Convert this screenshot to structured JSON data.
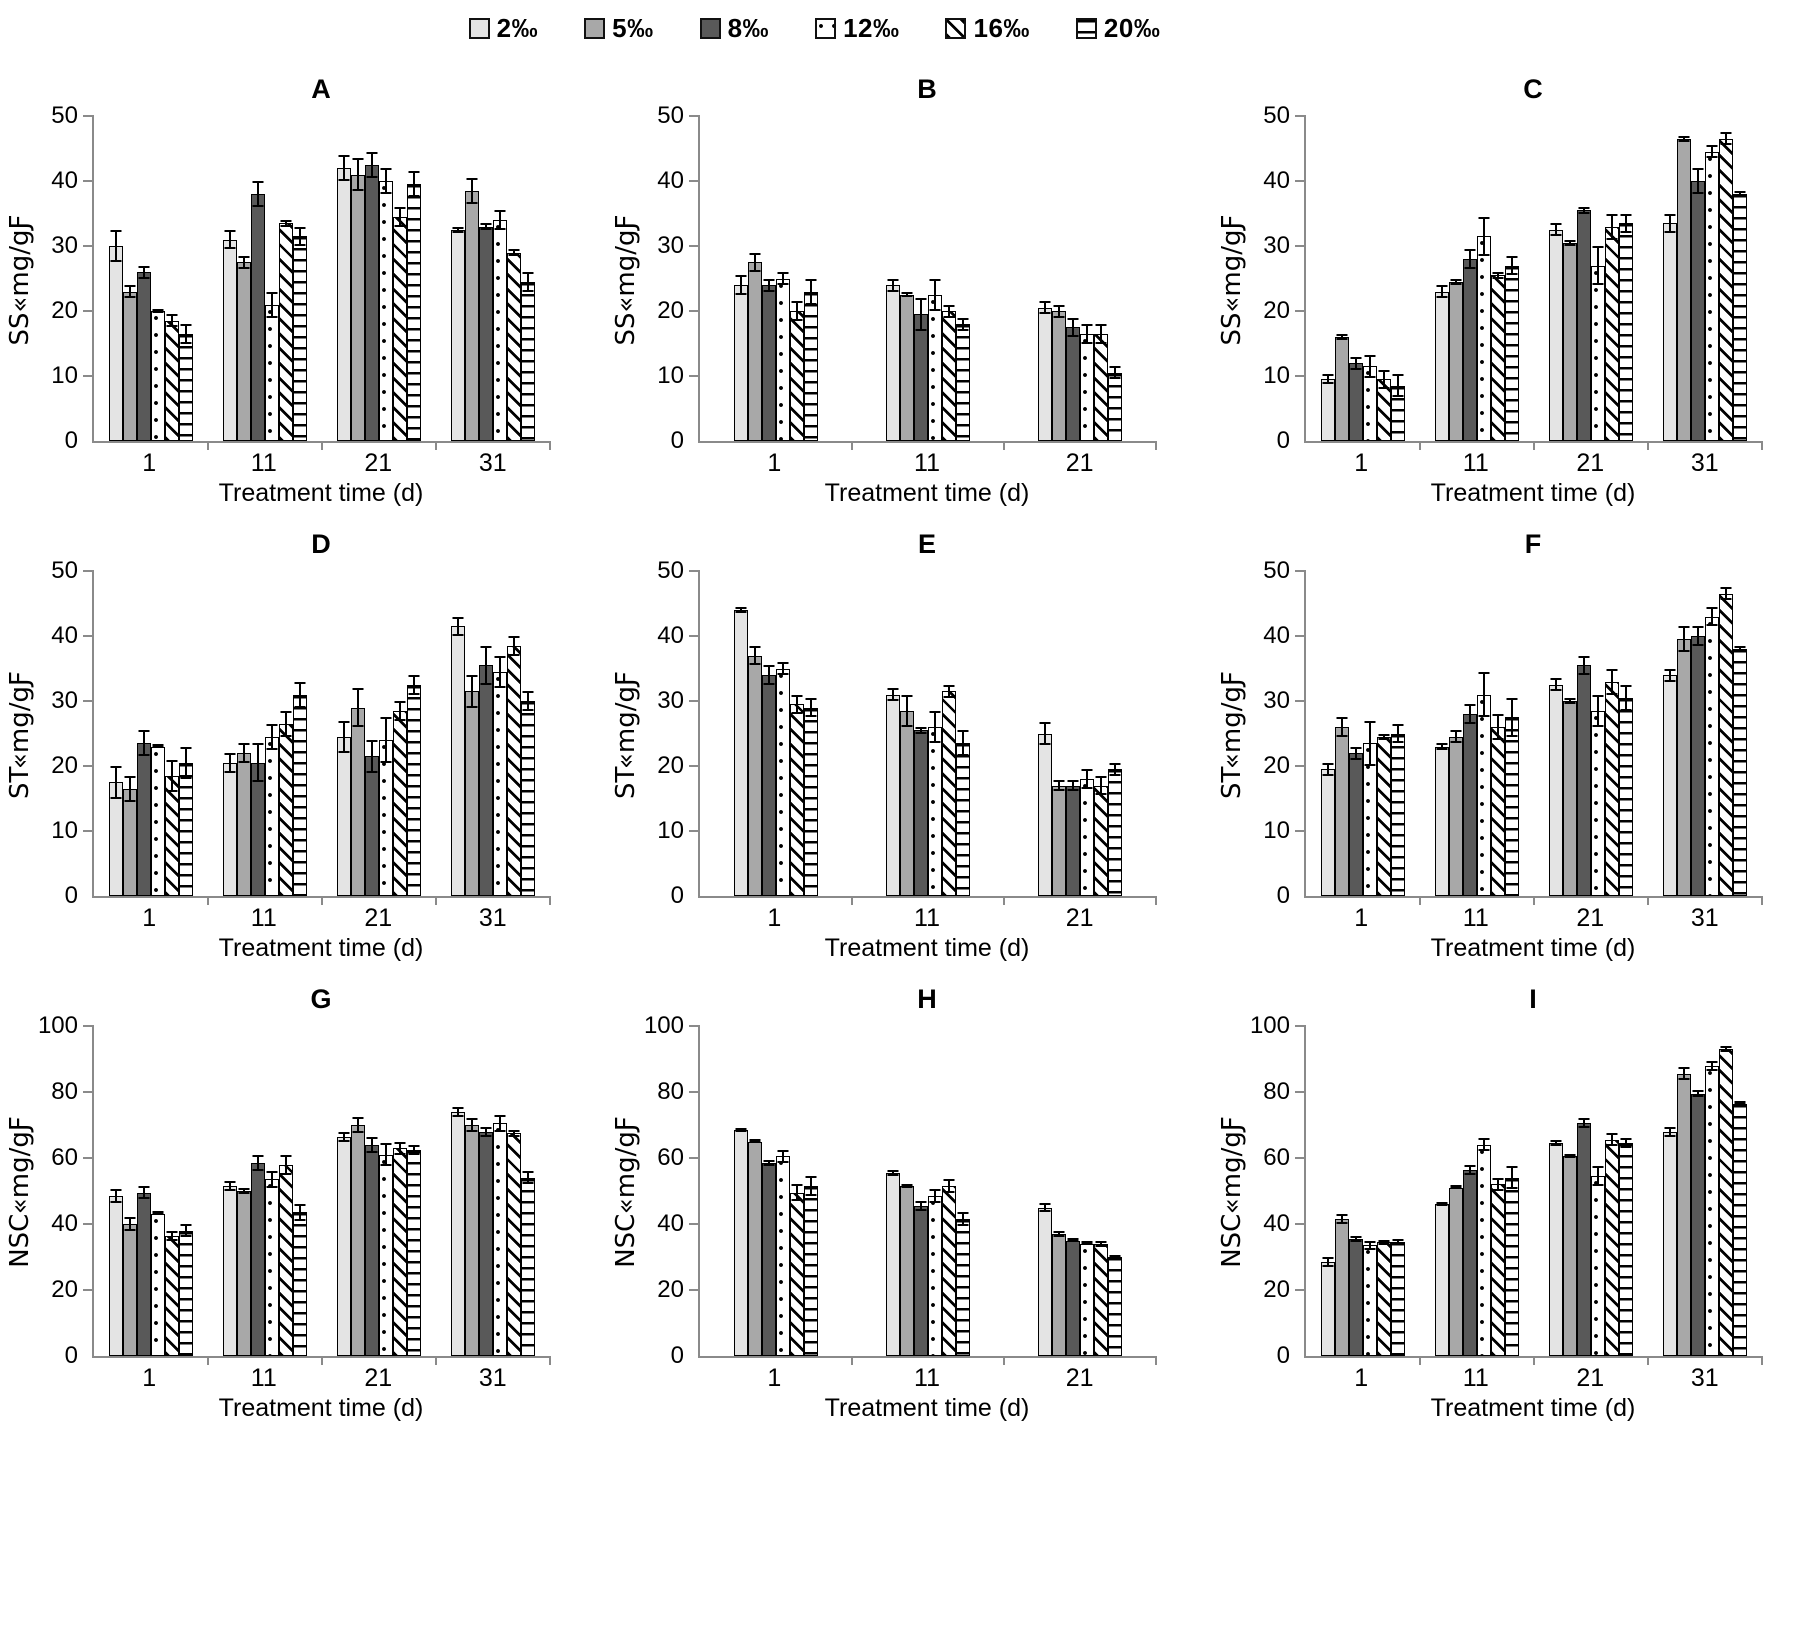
{
  "legend": {
    "items": [
      {
        "label": "2‰",
        "pattern": "p0"
      },
      {
        "label": "5‰",
        "pattern": "p1"
      },
      {
        "label": "8‰",
        "pattern": "p2"
      },
      {
        "label": "12‰",
        "pattern": "p3"
      },
      {
        "label": "16‰",
        "pattern": "p4"
      },
      {
        "label": "20‰",
        "pattern": "p5"
      }
    ]
  },
  "xlabel": "Treatment time (d)",
  "chart_data": [
    {
      "type": "bar",
      "id": "A",
      "title": "A",
      "ylabel": "SS«mg/gƑ",
      "ymax": 50,
      "ystep": 10,
      "legend_position": "top",
      "grid": false,
      "series_names": [
        "2‰",
        "5‰",
        "8‰",
        "12‰",
        "16‰",
        "20‰"
      ],
      "groups": [
        {
          "label": "1",
          "values": [
            30,
            23,
            26,
            20,
            18.5,
            16.5
          ],
          "errors": [
            2.5,
            1,
            1,
            0.3,
            1,
            1.5
          ]
        },
        {
          "label": "11",
          "values": [
            31,
            27.5,
            38,
            21,
            33.5,
            31.5
          ],
          "errors": [
            1.5,
            1,
            2,
            2,
            0.5,
            1.5
          ]
        },
        {
          "label": "21",
          "values": [
            42,
            41,
            42.5,
            40,
            34.5,
            39.5
          ],
          "errors": [
            2,
            2.5,
            2,
            2,
            1.5,
            2
          ]
        },
        {
          "label": "31",
          "values": [
            32.5,
            38.5,
            33,
            34,
            29,
            24.5
          ],
          "errors": [
            0.5,
            2,
            0.5,
            1.5,
            0.5,
            1.5
          ]
        }
      ]
    },
    {
      "type": "bar",
      "id": "B",
      "title": "B",
      "ylabel": "SS«mg/gƑ",
      "ymax": 50,
      "ystep": 10,
      "legend_position": "top",
      "grid": false,
      "series_names": [
        "2‰",
        "5‰",
        "8‰",
        "12‰",
        "16‰",
        "20‰"
      ],
      "groups": [
        {
          "label": "1",
          "values": [
            24,
            27.5,
            24,
            25,
            20,
            23
          ],
          "errors": [
            1.5,
            1.5,
            1,
            1,
            1.5,
            2
          ]
        },
        {
          "label": "11",
          "values": [
            24,
            22.5,
            19.5,
            22.5,
            20,
            18
          ],
          "errors": [
            1,
            0.4,
            2.5,
            2.5,
            1,
            1
          ]
        },
        {
          "label": "21",
          "values": [
            20.5,
            20,
            17.5,
            16.5,
            16.5,
            10.5
          ],
          "errors": [
            1,
            1,
            1.5,
            1.5,
            1.5,
            1
          ]
        }
      ]
    },
    {
      "type": "bar",
      "id": "C",
      "title": "C",
      "ylabel": "SS«mg/gƑ",
      "ymax": 50,
      "ystep": 10,
      "legend_position": "top",
      "grid": false,
      "series_names": [
        "2‰",
        "5‰",
        "8‰",
        "12‰",
        "16‰",
        "20‰"
      ],
      "groups": [
        {
          "label": "1",
          "values": [
            9.5,
            16,
            12,
            11.5,
            9.5,
            8.5
          ],
          "errors": [
            0.8,
            0.5,
            1,
            1.8,
            1.5,
            1.8
          ]
        },
        {
          "label": "11",
          "values": [
            23,
            24.5,
            28,
            31.5,
            25.5,
            27
          ],
          "errors": [
            1,
            0.5,
            1.5,
            3,
            0.5,
            1.5
          ]
        },
        {
          "label": "21",
          "values": [
            32.5,
            30.5,
            35.5,
            27,
            33,
            33.5
          ],
          "errors": [
            1,
            0.5,
            0.5,
            3,
            2,
            1.5
          ]
        },
        {
          "label": "31",
          "values": [
            33.5,
            46.5,
            40,
            44.5,
            46.5,
            38
          ],
          "errors": [
            1.5,
            0.5,
            2,
            1,
            1,
            0.5
          ]
        }
      ]
    },
    {
      "type": "bar",
      "id": "D",
      "title": "D",
      "ylabel": "ST«mg/gƑ",
      "ymax": 50,
      "ystep": 10,
      "legend_position": "top",
      "grid": false,
      "series_names": [
        "2‰",
        "5‰",
        "8‰",
        "12‰",
        "16‰",
        "20‰"
      ],
      "groups": [
        {
          "label": "1",
          "values": [
            17.5,
            16.5,
            23.5,
            23,
            18.5,
            20.5
          ],
          "errors": [
            2.5,
            2,
            2,
            0.3,
            2.5,
            2.5
          ]
        },
        {
          "label": "11",
          "values": [
            20.5,
            22,
            20.5,
            24.5,
            26.5,
            31
          ],
          "errors": [
            1.5,
            1.5,
            3,
            2,
            2,
            2
          ]
        },
        {
          "label": "21",
          "values": [
            24.5,
            29,
            21.5,
            24,
            28.5,
            32.5
          ],
          "errors": [
            2.5,
            3,
            2.5,
            3.5,
            1.5,
            1.5
          ]
        },
        {
          "label": "31",
          "values": [
            41.5,
            31.5,
            35.5,
            34.5,
            38.5,
            30
          ],
          "errors": [
            1.5,
            2.5,
            3,
            2.5,
            1.5,
            1.5
          ]
        }
      ]
    },
    {
      "type": "bar",
      "id": "E",
      "title": "E",
      "ylabel": "ST«mg/gƑ",
      "ymax": 50,
      "ystep": 10,
      "legend_position": "top",
      "grid": false,
      "series_names": [
        "2‰",
        "5‰",
        "8‰",
        "12‰",
        "16‰",
        "20‰"
      ],
      "groups": [
        {
          "label": "1",
          "values": [
            44,
            37,
            34,
            35,
            29.5,
            29
          ],
          "errors": [
            0.5,
            1.5,
            1.5,
            1,
            1.5,
            1.5
          ]
        },
        {
          "label": "11",
          "values": [
            31,
            28.5,
            25.5,
            26,
            31.5,
            23.5
          ],
          "errors": [
            1,
            2.5,
            0.5,
            2.5,
            1,
            2
          ]
        },
        {
          "label": "21",
          "values": [
            25,
            17,
            17,
            18,
            17,
            19.5
          ],
          "errors": [
            1.8,
            0.8,
            0.8,
            1.5,
            1.5,
            1
          ]
        }
      ]
    },
    {
      "type": "bar",
      "id": "F",
      "title": "F",
      "ylabel": "ST«mg/gƑ",
      "ymax": 50,
      "ystep": 10,
      "legend_position": "top",
      "grid": false,
      "series_names": [
        "2‰",
        "5‰",
        "8‰",
        "12‰",
        "16‰",
        "20‰"
      ],
      "groups": [
        {
          "label": "1",
          "values": [
            19.5,
            26,
            22,
            23.5,
            24.5,
            25
          ],
          "errors": [
            1,
            1.5,
            1,
            3.5,
            0.5,
            1.5
          ]
        },
        {
          "label": "11",
          "values": [
            23,
            24.5,
            28,
            31,
            26,
            27.5
          ],
          "errors": [
            0.5,
            1,
            1.5,
            3.5,
            2,
            3
          ]
        },
        {
          "label": "21",
          "values": [
            32.5,
            30,
            35.5,
            28.5,
            33,
            30.5
          ],
          "errors": [
            1,
            0.5,
            1.5,
            2.5,
            2,
            2
          ]
        },
        {
          "label": "31",
          "values": [
            34,
            39.5,
            40,
            43,
            46.5,
            38
          ],
          "errors": [
            1,
            2,
            1.5,
            1.5,
            1,
            0.5
          ]
        }
      ]
    },
    {
      "type": "bar",
      "id": "G",
      "title": "G",
      "ylabel": "NSC«mg/gƑ",
      "ymax": 100,
      "ystep": 20,
      "legend_position": "top",
      "grid": false,
      "series_names": [
        "2‰",
        "5‰",
        "8‰",
        "12‰",
        "16‰",
        "20‰"
      ],
      "groups": [
        {
          "label": "1",
          "values": [
            48.5,
            40,
            49.5,
            43,
            36.5,
            38
          ],
          "errors": [
            2,
            2,
            2,
            0.4,
            1.5,
            2
          ]
        },
        {
          "label": "11",
          "values": [
            51.5,
            50,
            58.5,
            53.5,
            58,
            43.5
          ],
          "errors": [
            1.5,
            1,
            2.5,
            2.5,
            3,
            2.5
          ]
        },
        {
          "label": "21",
          "values": [
            66.5,
            70,
            64,
            61,
            63,
            62.5
          ],
          "errors": [
            1.5,
            2.5,
            2.5,
            3.5,
            2,
            1.5
          ]
        },
        {
          "label": "31",
          "values": [
            74,
            70,
            68,
            70.5,
            67.5,
            54
          ],
          "errors": [
            1.5,
            2,
            1.5,
            2.5,
            1,
            2
          ]
        }
      ]
    },
    {
      "type": "bar",
      "id": "H",
      "title": "H",
      "ylabel": "NSC«mg/gƑ",
      "ymax": 100,
      "ystep": 20,
      "legend_position": "top",
      "grid": false,
      "series_names": [
        "2‰",
        "5‰",
        "8‰",
        "12‰",
        "16‰",
        "20‰"
      ],
      "groups": [
        {
          "label": "1",
          "values": [
            68.5,
            65,
            58.5,
            60.5,
            49.5,
            51.5
          ],
          "errors": [
            0.5,
            0.5,
            0.8,
            2,
            2.5,
            3
          ]
        },
        {
          "label": "11",
          "values": [
            55.5,
            51.5,
            45.5,
            48.5,
            51.5,
            41.5
          ],
          "errors": [
            1,
            0.5,
            1.5,
            2,
            2,
            2
          ]
        },
        {
          "label": "21",
          "values": [
            45,
            37,
            35,
            34,
            34,
            30
          ],
          "errors": [
            1.5,
            1,
            0.5,
            0.5,
            1,
            0.5
          ]
        }
      ]
    },
    {
      "type": "bar",
      "id": "I",
      "title": "I",
      "ylabel": "NSC«mg/gƑ",
      "ymax": 100,
      "ystep": 20,
      "legend_position": "top",
      "grid": false,
      "series_names": [
        "2‰",
        "5‰",
        "8‰",
        "12‰",
        "16‰",
        "20‰"
      ],
      "groups": [
        {
          "label": "1",
          "values": [
            28.5,
            41.5,
            35.5,
            33.5,
            34.5,
            34.5
          ],
          "errors": [
            1.5,
            1.5,
            1,
            1.5,
            0.8,
            1
          ]
        },
        {
          "label": "11",
          "values": [
            46,
            51,
            56.5,
            64,
            52,
            54
          ],
          "errors": [
            0.5,
            0.5,
            1.5,
            2,
            2,
            3.5
          ]
        },
        {
          "label": "21",
          "values": [
            64.5,
            60.5,
            70.5,
            54.5,
            65.5,
            64.5
          ],
          "errors": [
            1,
            0.5,
            1.5,
            3,
            2,
            1.5
          ]
        },
        {
          "label": "31",
          "values": [
            68,
            85.5,
            79.5,
            88,
            93,
            76.5
          ],
          "errors": [
            1.5,
            2,
            1,
            1.5,
            1,
            0.5
          ]
        }
      ]
    }
  ]
}
